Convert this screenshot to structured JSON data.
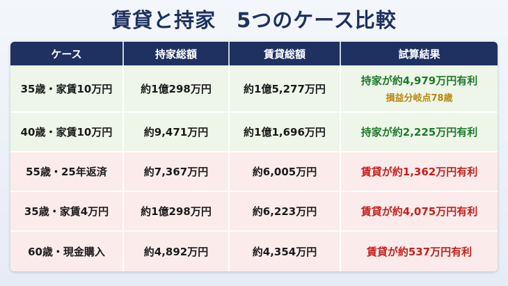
{
  "title": "賃貸と持家　5つのケース比較",
  "table": {
    "headers": [
      "ケース",
      "持家総額",
      "賃貸総額",
      "試算結果"
    ],
    "header_color": "#1e3160",
    "rows": [
      {
        "cells": [
          "35歳・家賃10万円",
          "約1億298万円",
          "約1億5,277万円",
          "持家が約4,979万円有利"
        ],
        "note": "損益分岐点78歳",
        "note_color": "#b8860b",
        "color": "#1d7a2c",
        "background": "#edf6e8"
      },
      {
        "cells": [
          "40歳・家賃10万円",
          "約9,471万円",
          "約1億1,696万円",
          "持家が約2,225万円有利"
        ],
        "color": "#1d7a2c",
        "background": "#edf6e8"
      },
      {
        "cells": [
          "55歳・25年返済",
          "約7,367万円",
          "約6,005万円",
          "賃貸が約1,362万円有利"
        ],
        "color": "#c4201c",
        "background": "#fcebeb"
      },
      {
        "cells": [
          "35歳・家賃4万円",
          "約1億298万円",
          "約6,223万円",
          "賃貸が約4,075万円有利"
        ],
        "color": "#c4201c",
        "background": "#fcebeb"
      },
      {
        "cells": [
          "60歳・現金購入",
          "約4,892万円",
          "約4,354万円",
          "賃貸が約537万円有利"
        ],
        "color": "#c4201c",
        "background": "#fcebeb"
      }
    ]
  }
}
